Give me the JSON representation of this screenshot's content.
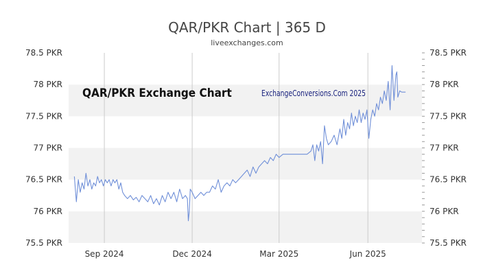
{
  "chart_title": "QAR/PKR Chart | 365 D",
  "chart_subtitle": "liveexchanges.com",
  "watermark_left": "QAR/PKR Exchange Chart",
  "watermark_right": "ExchangeConversions.Com 2025",
  "colors": {
    "line": "#6f8fd8",
    "band": "#f2f2f2",
    "vgrid": "#cccccc",
    "text": "#444444"
  },
  "chart_data": {
    "type": "line",
    "title": "QAR/PKR Chart | 365 D",
    "subtitle": "liveexchanges.com",
    "ylim": [
      75.5,
      78.5
    ],
    "y_ticks": [
      {
        "value": 78.5,
        "label": "78.5 PKR"
      },
      {
        "value": 78.0,
        "label": "78 PKR"
      },
      {
        "value": 77.5,
        "label": "77.5 PKR"
      },
      {
        "value": 77.0,
        "label": "77 PKR"
      },
      {
        "value": 76.5,
        "label": "76.5 PKR"
      },
      {
        "value": 76.0,
        "label": "76 PKR"
      },
      {
        "value": 75.5,
        "label": "75.5 PKR"
      }
    ],
    "xlim": [
      "2024-07-26",
      "2025-07-27"
    ],
    "x_ticks": [
      {
        "date": "2024-09-01",
        "label": "Sep 2024"
      },
      {
        "date": "2024-12-01",
        "label": "Dec 2024"
      },
      {
        "date": "2025-03-01",
        "label": "Mar 2025"
      },
      {
        "date": "2025-06-01",
        "label": "Jun 2025"
      }
    ],
    "grid": true,
    "series": [
      {
        "points": [
          [
            "2024-08-01",
            76.55
          ],
          [
            "2024-08-02",
            76.35
          ],
          [
            "2024-08-03",
            76.15
          ],
          [
            "2024-08-05",
            76.5
          ],
          [
            "2024-08-07",
            76.3
          ],
          [
            "2024-08-09",
            76.45
          ],
          [
            "2024-08-11",
            76.35
          ],
          [
            "2024-08-13",
            76.6
          ],
          [
            "2024-08-15",
            76.4
          ],
          [
            "2024-08-17",
            76.5
          ],
          [
            "2024-08-19",
            76.35
          ],
          [
            "2024-08-21",
            76.45
          ],
          [
            "2024-08-23",
            76.4
          ],
          [
            "2024-08-25",
            76.55
          ],
          [
            "2024-08-27",
            76.45
          ],
          [
            "2024-08-29",
            76.5
          ],
          [
            "2024-08-31",
            76.4
          ],
          [
            "2024-09-02",
            76.5
          ],
          [
            "2024-09-04",
            76.45
          ],
          [
            "2024-09-06",
            76.5
          ],
          [
            "2024-09-08",
            76.4
          ],
          [
            "2024-09-10",
            76.5
          ],
          [
            "2024-09-12",
            76.45
          ],
          [
            "2024-09-14",
            76.5
          ],
          [
            "2024-09-16",
            76.35
          ],
          [
            "2024-09-18",
            76.45
          ],
          [
            "2024-09-20",
            76.3
          ],
          [
            "2024-09-22",
            76.25
          ],
          [
            "2024-09-25",
            76.2
          ],
          [
            "2024-09-28",
            76.25
          ],
          [
            "2024-10-01",
            76.18
          ],
          [
            "2024-10-04",
            76.22
          ],
          [
            "2024-10-07",
            76.15
          ],
          [
            "2024-10-10",
            76.25
          ],
          [
            "2024-10-13",
            76.2
          ],
          [
            "2024-10-16",
            76.15
          ],
          [
            "2024-10-19",
            76.25
          ],
          [
            "2024-10-22",
            76.12
          ],
          [
            "2024-10-25",
            76.2
          ],
          [
            "2024-10-28",
            76.1
          ],
          [
            "2024-10-31",
            76.25
          ],
          [
            "2024-11-03",
            76.15
          ],
          [
            "2024-11-06",
            76.3
          ],
          [
            "2024-11-09",
            76.2
          ],
          [
            "2024-11-12",
            76.3
          ],
          [
            "2024-11-15",
            76.15
          ],
          [
            "2024-11-18",
            76.35
          ],
          [
            "2024-11-21",
            76.2
          ],
          [
            "2024-11-24",
            76.25
          ],
          [
            "2024-11-26",
            76.2
          ],
          [
            "2024-11-27",
            75.85
          ],
          [
            "2024-11-28",
            76.0
          ],
          [
            "2024-11-29",
            76.35
          ],
          [
            "2024-12-01",
            76.3
          ],
          [
            "2024-12-04",
            76.2
          ],
          [
            "2024-12-07",
            76.25
          ],
          [
            "2024-12-10",
            76.3
          ],
          [
            "2024-12-13",
            76.25
          ],
          [
            "2024-12-16",
            76.3
          ],
          [
            "2024-12-19",
            76.3
          ],
          [
            "2024-12-22",
            76.4
          ],
          [
            "2024-12-25",
            76.35
          ],
          [
            "2024-12-28",
            76.5
          ],
          [
            "2024-12-31",
            76.3
          ],
          [
            "2025-01-03",
            76.4
          ],
          [
            "2025-01-06",
            76.45
          ],
          [
            "2025-01-09",
            76.4
          ],
          [
            "2025-01-12",
            76.5
          ],
          [
            "2025-01-15",
            76.45
          ],
          [
            "2025-01-18",
            76.5
          ],
          [
            "2025-01-21",
            76.55
          ],
          [
            "2025-01-24",
            76.6
          ],
          [
            "2025-01-27",
            76.65
          ],
          [
            "2025-01-30",
            76.55
          ],
          [
            "2025-02-02",
            76.7
          ],
          [
            "2025-02-05",
            76.6
          ],
          [
            "2025-02-08",
            76.7
          ],
          [
            "2025-02-11",
            76.75
          ],
          [
            "2025-02-14",
            76.8
          ],
          [
            "2025-02-17",
            76.75
          ],
          [
            "2025-02-20",
            76.85
          ],
          [
            "2025-02-23",
            76.8
          ],
          [
            "2025-02-26",
            76.9
          ],
          [
            "2025-03-01",
            76.85
          ],
          [
            "2025-03-05",
            76.9
          ],
          [
            "2025-03-10",
            76.9
          ],
          [
            "2025-03-15",
            76.9
          ],
          [
            "2025-03-20",
            76.9
          ],
          [
            "2025-03-25",
            76.9
          ],
          [
            "2025-03-30",
            76.9
          ],
          [
            "2025-04-03",
            76.95
          ],
          [
            "2025-04-05",
            77.05
          ],
          [
            "2025-04-07",
            76.8
          ],
          [
            "2025-04-09",
            77.05
          ],
          [
            "2025-04-11",
            76.95
          ],
          [
            "2025-04-13",
            77.1
          ],
          [
            "2025-04-15",
            76.75
          ],
          [
            "2025-04-17",
            77.35
          ],
          [
            "2025-04-19",
            77.15
          ],
          [
            "2025-04-21",
            77.05
          ],
          [
            "2025-04-24",
            77.1
          ],
          [
            "2025-04-27",
            77.2
          ],
          [
            "2025-04-30",
            77.05
          ],
          [
            "2025-05-03",
            77.3
          ],
          [
            "2025-05-05",
            77.15
          ],
          [
            "2025-05-07",
            77.45
          ],
          [
            "2025-05-09",
            77.2
          ],
          [
            "2025-05-11",
            77.4
          ],
          [
            "2025-05-13",
            77.3
          ],
          [
            "2025-05-15",
            77.55
          ],
          [
            "2025-05-17",
            77.35
          ],
          [
            "2025-05-19",
            77.5
          ],
          [
            "2025-05-21",
            77.4
          ],
          [
            "2025-05-23",
            77.6
          ],
          [
            "2025-05-25",
            77.4
          ],
          [
            "2025-05-27",
            77.55
          ],
          [
            "2025-05-29",
            77.45
          ],
          [
            "2025-05-31",
            77.6
          ],
          [
            "2025-06-02",
            77.15
          ],
          [
            "2025-06-04",
            77.45
          ],
          [
            "2025-06-06",
            77.6
          ],
          [
            "2025-06-08",
            77.5
          ],
          [
            "2025-06-10",
            77.7
          ],
          [
            "2025-06-12",
            77.6
          ],
          [
            "2025-06-14",
            77.8
          ],
          [
            "2025-06-16",
            77.7
          ],
          [
            "2025-06-18",
            77.9
          ],
          [
            "2025-06-20",
            77.75
          ],
          [
            "2025-06-22",
            78.05
          ],
          [
            "2025-06-24",
            77.6
          ],
          [
            "2025-06-26",
            78.3
          ],
          [
            "2025-06-28",
            77.75
          ],
          [
            "2025-06-30",
            78.15
          ],
          [
            "2025-07-01",
            78.2
          ],
          [
            "2025-07-02",
            77.8
          ],
          [
            "2025-07-04",
            77.9
          ],
          [
            "2025-07-06",
            77.88
          ],
          [
            "2025-07-10",
            77.88
          ]
        ]
      }
    ]
  }
}
